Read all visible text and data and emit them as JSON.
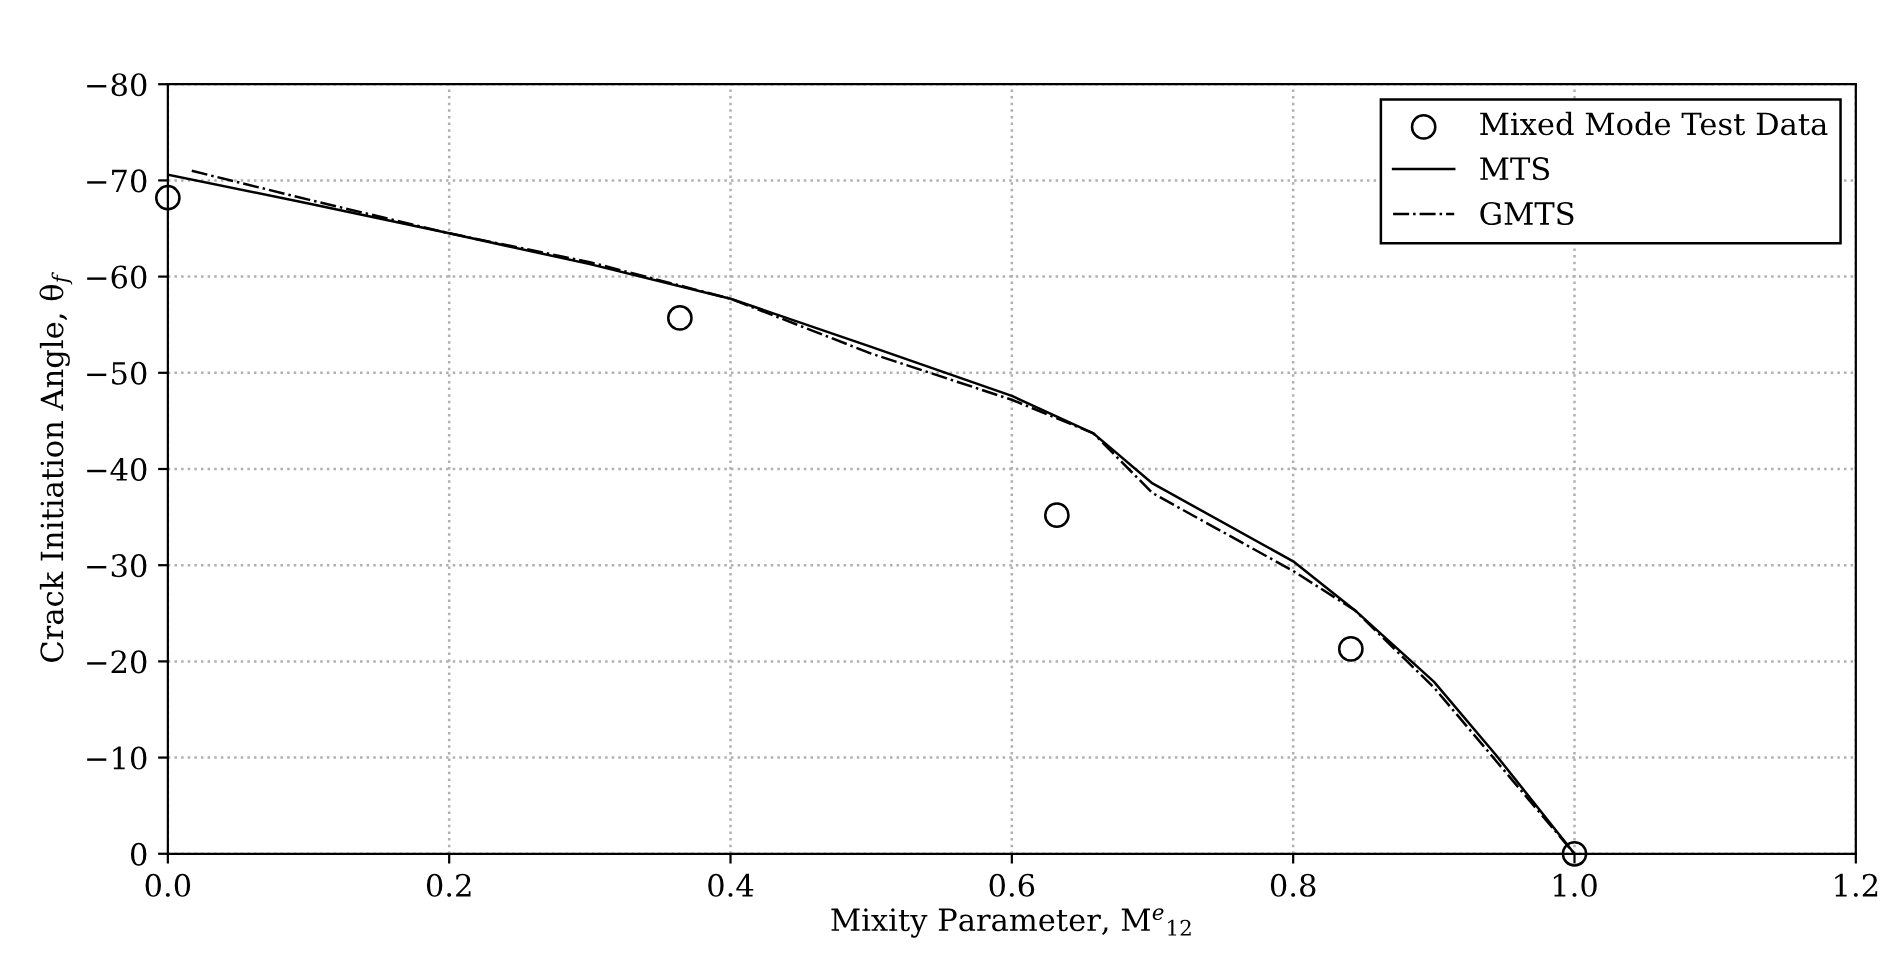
{
  "chart_data": {
    "type": "line",
    "xlabel": "Mixity Parameter, M$^{e}$$_{12}$",
    "ylabel": "Crack Initiation Angle, θ$_{f}$",
    "xlim": [
      0,
      1.2
    ],
    "xticks": [
      {
        "value": 0,
        "label": "0.0"
      },
      0.2,
      0.4,
      0.6,
      0.8,
      {
        "value": 1,
        "label": "1.0"
      },
      1.2
    ],
    "ylim": [
      0,
      -80
    ],
    "yticks": [
      0,
      -10,
      -20,
      -30,
      -40,
      -50,
      -60,
      -70,
      -80
    ],
    "grid": true,
    "legend": "top right",
    "series": [
      {
        "name": "Mixed Mode Test Data",
        "type": "scatter",
        "marker": "circle",
        "color": "#000000",
        "x": [
          0.0,
          0.364,
          0.632,
          0.841,
          1.0
        ],
        "values": [
          -68.2,
          -55.7,
          -35.2,
          -21.3,
          0
        ]
      },
      {
        "name": "MTS",
        "line_style": "solid",
        "color": "#000000",
        "x": [
          0.0,
          0.1,
          0.2,
          0.3,
          0.4,
          0.5,
          0.6,
          0.658,
          0.7,
          0.8,
          0.844,
          0.9,
          0.944,
          1.0
        ],
        "values": [
          -70.6,
          -67.6,
          -64.5,
          -61.3,
          -57.7,
          -52.7,
          -47.6,
          -43.7,
          -38.5,
          -30.4,
          -25.3,
          -17.9,
          -10.3,
          0
        ]
      },
      {
        "name": "GMTS",
        "line_style": "dashdot",
        "color": "#000000",
        "x": [
          0.017,
          0.1,
          0.2,
          0.3,
          0.4,
          0.5,
          0.6,
          0.658,
          0.7,
          0.8,
          0.844,
          0.9,
          0.944,
          1.0
        ],
        "values": [
          -71.0,
          -68.0,
          -64.5,
          -61.5,
          -57.7,
          -52.0,
          -47.2,
          -43.7,
          -37.5,
          -29.4,
          -25.3,
          -17.3,
          -9.7,
          0
        ]
      }
    ]
  }
}
